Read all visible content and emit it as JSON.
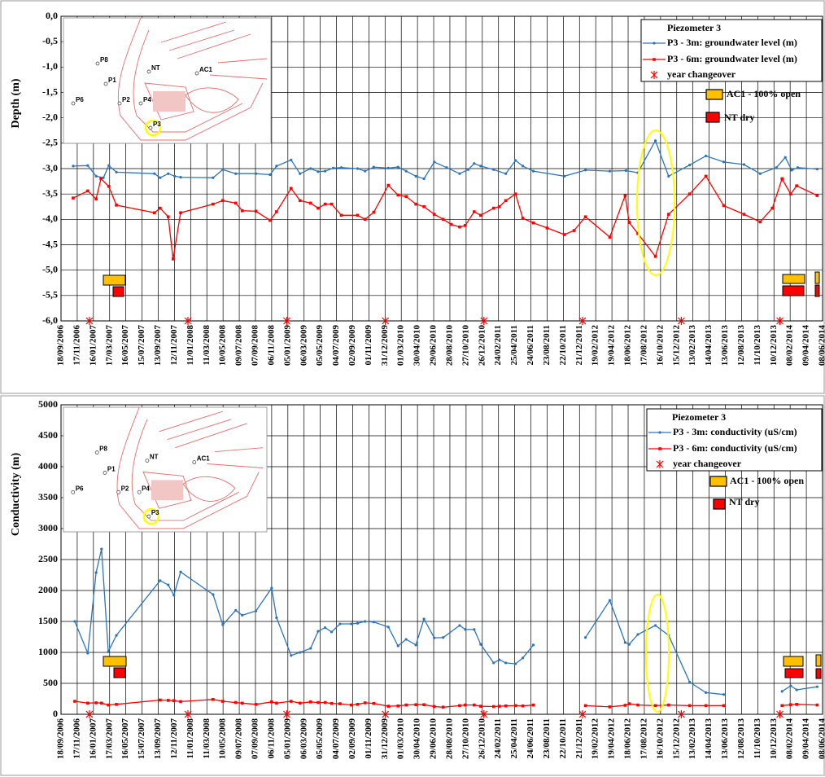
{
  "chart_data": [
    {
      "type": "line",
      "y_label": "Depth (m)",
      "legend_title": "Piezometer 3",
      "legend": "upper right",
      "grid": true,
      "xlim": [
        "18/09/2006",
        "08/06/2014"
      ],
      "xticks": [
        "18/09/2006",
        "17/11/2006",
        "16/01/2007",
        "17/03/2007",
        "16/05/2007",
        "15/07/2007",
        "13/09/2007",
        "12/11/2007",
        "11/01/2008",
        "11/03/2008",
        "10/05/2008",
        "09/07/2008",
        "07/09/2008",
        "06/11/2008",
        "05/01/2009",
        "06/03/2009",
        "05/05/2009",
        "04/07/2009",
        "02/09/2009",
        "01/11/2009",
        "31/12/2009",
        "01/03/2010",
        "30/04/2010",
        "29/06/2010",
        "28/08/2010",
        "27/10/2010",
        "26/12/2010",
        "24/02/2011",
        "25/04/2011",
        "24/06/2011",
        "23/08/2011",
        "22/10/2011",
        "21/12/2011",
        "19/02/2012",
        "19/04/2012",
        "18/06/2012",
        "17/08/2012",
        "16/10/2012",
        "15/12/2012",
        "13/02/2013",
        "14/04/2013",
        "13/06/2013",
        "12/08/2013",
        "11/10/2013",
        "10/12/2013",
        "08/02/2014",
        "09/04/2014",
        "08/06/2014"
      ],
      "ylim": [
        -6,
        0
      ],
      "yticks": [
        {
          "value": 0,
          "label": "0,0"
        },
        {
          "value": -0.5,
          "label": "-0,5"
        },
        {
          "value": -1,
          "label": "-1,0"
        },
        {
          "value": -1.5,
          "label": "-1,5"
        },
        {
          "value": -2,
          "label": "-2,0"
        },
        {
          "value": -2.5,
          "label": "-2,5"
        },
        {
          "value": -3,
          "label": "-3,0"
        },
        {
          "value": -3.5,
          "label": "-3,5"
        },
        {
          "value": -4,
          "label": "-4,0"
        },
        {
          "value": -4.5,
          "label": "-4,5"
        },
        {
          "value": -5,
          "label": "-5,0"
        },
        {
          "value": -5.5,
          "label": "-5,5"
        },
        {
          "value": -6,
          "label": "-6,0"
        }
      ],
      "series": [
        {
          "name": "P3 - 3m:  groundwater level (m)",
          "color": "#2e75b6",
          "marker": "dot",
          "linestyle": "solid",
          "x": [
            "02/11/2006",
            "26/12/2006",
            "26/01/2007",
            "22/02/2007",
            "14/03/2007",
            "11/04/2007",
            "30/08/2007",
            "20/09/2007",
            "20/10/2007",
            "13/11/2007",
            "05/12/2007",
            "03/04/2008",
            "09/05/2008",
            "26/06/2008",
            "09/09/2008",
            "31/10/2008",
            "24/11/2008",
            "17/01/2009",
            "19/02/2009",
            "30/03/2009",
            "27/04/2009",
            "23/05/2009",
            "22/06/2009",
            "22/07/2009",
            "20/09/2009",
            "18/10/2009",
            "19/11/2009",
            "12/01/2010",
            "17/02/2010",
            "19/03/2010",
            "24/04/2010",
            "24/05/2010",
            "01/07/2010",
            "16/08/2010",
            "03/10/2010",
            "04/11/2010",
            "26/11/2010",
            "20/12/2010",
            "06/02/2011",
            "23/03/2011",
            "28/04/2011",
            "25/05/2011",
            "03/07/2011",
            "26/10/2011",
            "12/01/2012",
            "11/04/2012",
            "10/06/2012",
            "24/07/2012",
            "27/09/2012",
            "15/11/2012",
            "01/02/2013",
            "02/04/2013",
            "07/06/2013",
            "21/08/2013",
            "20/10/2013",
            "19/12/2013",
            "21/01/2014",
            "14/02/2014",
            "08/03/2014",
            "19/05/2014"
          ],
          "values": [
            -2.95,
            -2.94,
            -3.15,
            -3.18,
            -2.94,
            -3.07,
            -3.1,
            -3.18,
            -3.1,
            -3.15,
            -3.17,
            -3.18,
            -3.02,
            -3.1,
            -3.1,
            -3.12,
            -2.95,
            -2.83,
            -3.1,
            -3.0,
            -3.06,
            -3.05,
            -2.99,
            -2.98,
            -3.0,
            -3.05,
            -2.97,
            -2.99,
            -2.97,
            -3.05,
            -3.15,
            -3.2,
            -2.87,
            -2.98,
            -3.1,
            -3.02,
            -2.9,
            -2.95,
            -3.02,
            -3.1,
            -2.84,
            -2.95,
            -3.05,
            -3.15,
            -3.03,
            -3.05,
            -3.04,
            -3.08,
            -2.45,
            -3.15,
            -2.93,
            -2.75,
            -2.87,
            -2.92,
            -3.1,
            -2.98,
            -2.78,
            -3.03,
            -2.98,
            -3.01
          ]
        },
        {
          "name": "P3 - 6m:  groundwater level (m)",
          "color": "#ff0000",
          "marker": "square",
          "linestyle": "solid",
          "x": [
            "02/11/2006",
            "26/12/2006",
            "26/01/2007",
            "13/02/2007",
            "14/03/2007",
            "11/04/2007",
            "30/08/2007",
            "20/09/2007",
            "20/10/2007",
            "07/11/2007",
            "05/12/2007",
            "03/04/2008",
            "09/05/2008",
            "26/06/2008",
            "20/07/2008",
            "09/09/2008",
            "31/10/2008",
            "24/11/2008",
            "17/01/2009",
            "19/02/2009",
            "30/03/2009",
            "27/04/2009",
            "23/05/2009",
            "16/06/2009",
            "22/07/2009",
            "20/09/2009",
            "18/10/2009",
            "19/11/2009",
            "12/01/2010",
            "17/02/2010",
            "19/03/2010",
            "24/04/2010",
            "24/05/2010",
            "01/07/2010",
            "03/08/2010",
            "02/09/2010",
            "03/10/2010",
            "24/10/2010",
            "26/11/2010",
            "20/12/2010",
            "06/02/2011",
            "27/02/2011",
            "23/03/2011",
            "28/04/2011",
            "25/05/2011",
            "03/07/2011",
            "23/08/2011",
            "26/10/2011",
            "01/12/2011",
            "12/01/2012",
            "11/04/2012",
            "07/06/2012",
            "22/06/2012",
            "24/07/2012",
            "27/09/2012",
            "15/11/2012",
            "01/02/2013",
            "02/04/2013",
            "07/06/2013",
            "21/08/2013",
            "20/10/2013",
            "04/12/2013",
            "09/01/2014",
            "10/02/2014",
            "04/03/2014",
            "19/05/2014"
          ],
          "values": [
            -3.58,
            -3.44,
            -3.6,
            -3.2,
            -3.35,
            -3.72,
            -3.87,
            -3.78,
            -3.95,
            -4.78,
            -3.87,
            -3.7,
            -3.63,
            -3.68,
            -3.83,
            -3.84,
            -4.02,
            -3.85,
            -3.39,
            -3.63,
            -3.68,
            -3.78,
            -3.7,
            -3.7,
            -3.92,
            -3.92,
            -4.0,
            -3.86,
            -3.33,
            -3.52,
            -3.55,
            -3.7,
            -3.75,
            -3.9,
            -4.0,
            -4.1,
            -4.15,
            -4.12,
            -3.85,
            -3.92,
            -3.78,
            -3.75,
            -3.63,
            -3.5,
            -3.98,
            -4.07,
            -4.17,
            -4.3,
            -4.22,
            -3.95,
            -4.35,
            -3.53,
            -4.06,
            -4.28,
            -4.73,
            -3.9,
            -3.5,
            -3.15,
            -3.73,
            -3.9,
            -4.05,
            -3.78,
            -3.2,
            -3.5,
            -3.34,
            -3.53
          ]
        },
        {
          "name": "year changeover",
          "color": "#ff0000",
          "marker": "asterisk",
          "linestyle": "none",
          "x": [
            "01/01/2007",
            "01/01/2008",
            "01/01/2009",
            "01/01/2010",
            "01/01/2011",
            "01/01/2012",
            "01/01/2013",
            "01/01/2014"
          ],
          "values": [
            -6,
            -6,
            -6,
            -6,
            -6,
            -6,
            -6,
            -6
          ]
        }
      ],
      "annotations": [
        {
          "label": "AC1 - 100% open",
          "color": "#ffc000"
        },
        {
          "label": "NT dry",
          "color": "#ff0000"
        }
      ],
      "inset_labels": [
        "P8",
        "P1",
        "P6",
        "P2",
        "P4",
        "P3",
        "NT",
        "AC1"
      ]
    },
    {
      "type": "line",
      "y_label": "Conductivity (m)",
      "legend_title": "Piezometer 3",
      "legend": "upper right",
      "grid": true,
      "xlim": [
        "18/09/2006",
        "08/06/2014"
      ],
      "xticks": [
        "18/09/2006",
        "17/11/2006",
        "16/01/2007",
        "17/03/2007",
        "16/05/2007",
        "15/07/2007",
        "13/09/2007",
        "12/11/2007",
        "11/01/2008",
        "11/03/2008",
        "10/05/2008",
        "09/07/2008",
        "07/09/2008",
        "06/11/2008",
        "05/01/2009",
        "06/03/2009",
        "05/05/2009",
        "04/07/2009",
        "02/09/2009",
        "01/11/2009",
        "31/12/2009",
        "01/03/2010",
        "30/04/2010",
        "29/06/2010",
        "28/08/2010",
        "27/10/2010",
        "26/12/2010",
        "24/02/2011",
        "25/04/2011",
        "24/06/2011",
        "23/08/2011",
        "22/10/2011",
        "21/12/2011",
        "19/02/2012",
        "19/04/2012",
        "18/06/2012",
        "17/08/2012",
        "16/10/2012",
        "15/12/2012",
        "13/02/2013",
        "14/04/2013",
        "13/06/2013",
        "12/08/2013",
        "11/10/2013",
        "10/12/2013",
        "08/02/2014",
        "09/04/2014",
        "08/06/2014"
      ],
      "ylim": [
        0,
        5000
      ],
      "yticks": [
        0,
        500,
        1000,
        1500,
        2000,
        2500,
        3000,
        3500,
        4000,
        4500,
        5000
      ],
      "series": [
        {
          "name": "P3 - 3m:  conductivity (uS/cm)",
          "color": "#2e75b6",
          "marker": "dot",
          "linestyle": "solid",
          "x": [
            "08/11/2006",
            "26/12/2006",
            "26/01/2007",
            "15/02/2007",
            "12/03/2007",
            "11/04/2007",
            "20/09/2007",
            "20/10/2007",
            "10/11/2007",
            "05/12/2007",
            "03/04/2008",
            "09/05/2008",
            "26/06/2008",
            "20/07/2008",
            "09/09/2008",
            "06/11/2008",
            "24/11/2008",
            "17/01/2009",
            "19/02/2009",
            "30/03/2009",
            "27/04/2009",
            "23/05/2009",
            "16/06/2009",
            "17/07/2009",
            "28/08/2009",
            "20/09/2009",
            "18/10/2009",
            "19/11/2009",
            "12/01/2010",
            "17/02/2010",
            "19/03/2010",
            "24/04/2010",
            "24/05/2010",
            "01/07/2010",
            "03/08/2010",
            "03/10/2010",
            "24/10/2010",
            "26/11/2010",
            "20/12/2010",
            "06/02/2011",
            "27/02/2011",
            "23/03/2011",
            "28/04/2011",
            "25/05/2011",
            "03/07/2011",
            "22/10/2011",
            "12/01/2012",
            "11/04/2012",
            "07/06/2012",
            "22/06/2012",
            "24/07/2012",
            "27/09/2012",
            "15/11/2012",
            "01/02/2013",
            "02/04/2013",
            "07/06/2013",
            "11/10/2013",
            "09/01/2014",
            "10/02/2014",
            "04/03/2014",
            "19/05/2014"
          ],
          "values": [
            1500,
            987,
            2290,
            2670,
            1010,
            1275,
            2160,
            2090,
            1925,
            2300,
            1935,
            1445,
            1680,
            1600,
            1670,
            2040,
            1560,
            950,
            1000,
            1065,
            1340,
            1400,
            1330,
            1460,
            1460,
            1470,
            1500,
            1490,
            1410,
            1105,
            1210,
            1120,
            1540,
            1235,
            1240,
            1435,
            1370,
            1370,
            1130,
            830,
            880,
            830,
            815,
            910,
            1120,
            null,
            1240,
            1840,
            1160,
            1130,
            1290,
            1435,
            1275,
            520,
            350,
            320,
            null,
            370,
            460,
            395,
            445
          ]
        },
        {
          "name": "P3 - 6m: conductivity (uS/cm)",
          "color": "#ff0000",
          "marker": "square",
          "linestyle": "solid",
          "x": [
            "08/11/2006",
            "26/12/2006",
            "26/01/2007",
            "15/02/2007",
            "12/03/2007",
            "11/04/2007",
            "20/09/2007",
            "20/10/2007",
            "10/11/2007",
            "05/12/2007",
            "03/04/2008",
            "09/05/2008",
            "26/06/2008",
            "20/07/2008",
            "09/09/2008",
            "06/11/2008",
            "24/11/2008",
            "17/01/2009",
            "19/02/2009",
            "30/03/2009",
            "27/04/2009",
            "23/05/2009",
            "16/06/2009",
            "17/07/2009",
            "28/08/2009",
            "20/09/2009",
            "18/10/2009",
            "19/11/2009",
            "12/01/2010",
            "17/02/2010",
            "19/03/2010",
            "24/04/2010",
            "24/05/2010",
            "01/07/2010",
            "03/08/2010",
            "03/10/2010",
            "24/10/2010",
            "26/11/2010",
            "20/12/2010",
            "06/02/2011",
            "27/02/2011",
            "23/03/2011",
            "28/04/2011",
            "25/05/2011",
            "03/07/2011",
            "22/10/2011",
            "12/01/2012",
            "11/04/2012",
            "07/06/2012",
            "22/06/2012",
            "24/07/2012",
            "27/09/2012",
            "15/11/2012",
            "01/02/2013",
            "02/04/2013",
            "07/06/2013",
            "11/10/2013",
            "09/01/2014",
            "10/02/2014",
            "04/03/2014",
            "19/05/2014"
          ],
          "values": [
            210,
            180,
            185,
            180,
            150,
            160,
            230,
            225,
            220,
            205,
            240,
            210,
            190,
            180,
            160,
            200,
            180,
            210,
            180,
            200,
            190,
            190,
            175,
            170,
            150,
            160,
            185,
            175,
            130,
            135,
            150,
            155,
            155,
            125,
            115,
            140,
            150,
            150,
            130,
            125,
            130,
            135,
            140,
            135,
            150,
            null,
            140,
            120,
            145,
            170,
            150,
            140,
            150,
            140,
            140,
            140,
            null,
            140,
            155,
            160,
            150
          ]
        },
        {
          "name": "year changeover",
          "color": "#ff0000",
          "marker": "asterisk",
          "linestyle": "none",
          "x": [
            "01/01/2007",
            "01/01/2008",
            "01/01/2009",
            "01/01/2010",
            "01/01/2011",
            "01/01/2012",
            "01/01/2013",
            "01/01/2014"
          ],
          "values": [
            0,
            0,
            0,
            0,
            0,
            0,
            0,
            0
          ]
        }
      ],
      "annotations": [
        {
          "label": "AC1 - 100% open",
          "color": "#ffc000"
        },
        {
          "label": "NT dry",
          "color": "#ff0000"
        }
      ],
      "inset_labels": [
        "P8",
        "P1",
        "P6",
        "P2",
        "P4",
        "P3",
        "NT",
        "AC1"
      ]
    }
  ]
}
